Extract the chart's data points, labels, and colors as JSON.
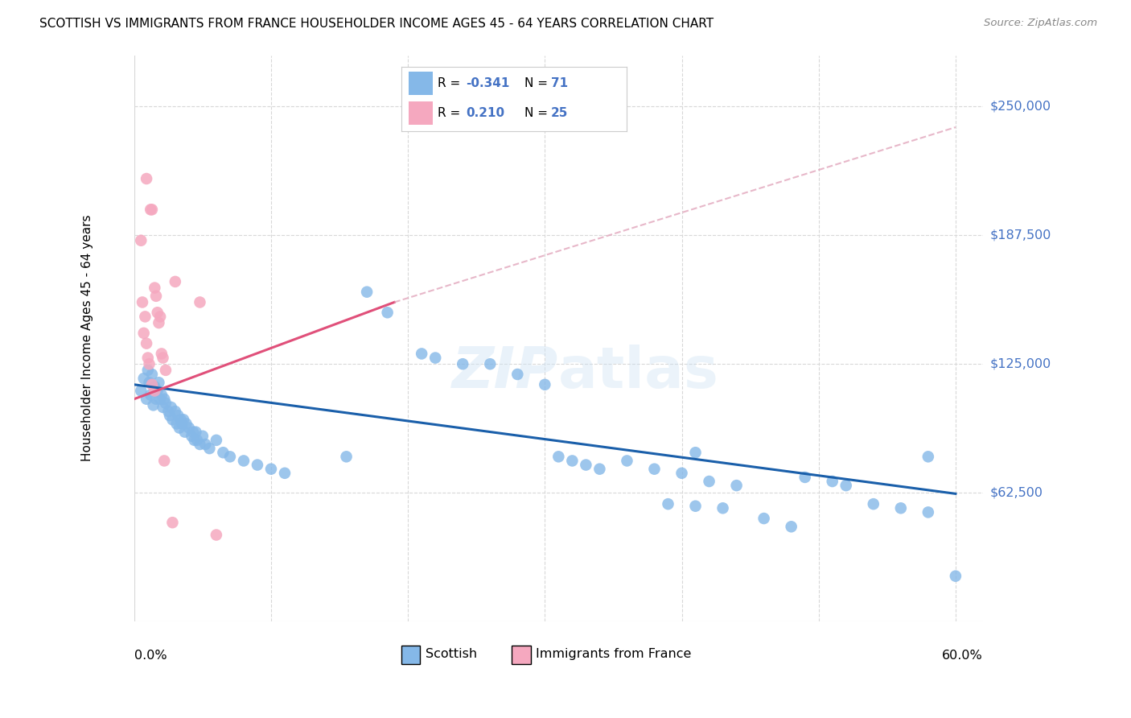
{
  "title": "SCOTTISH VS IMMIGRANTS FROM FRANCE HOUSEHOLDER INCOME AGES 45 - 64 YEARS CORRELATION CHART",
  "source": "Source: ZipAtlas.com",
  "ylabel": "Householder Income Ages 45 - 64 years",
  "ytick_labels": [
    "$62,500",
    "$125,000",
    "$187,500",
    "$250,000"
  ],
  "ytick_values": [
    62500,
    125000,
    187500,
    250000
  ],
  "ylim": [
    0,
    275000
  ],
  "xlim": [
    0.0,
    0.62
  ],
  "blue_color": "#85b8e8",
  "pink_color": "#f5a8bf",
  "blue_line_color": "#1a5faa",
  "pink_line_solid_color": "#e0507a",
  "pink_line_dash_color": "#e0a0b8",
  "grid_color": "#d8d8d8",
  "background_color": "#ffffff",
  "blue_scatter": [
    [
      0.005,
      112000
    ],
    [
      0.007,
      118000
    ],
    [
      0.009,
      108000
    ],
    [
      0.01,
      122000
    ],
    [
      0.011,
      116000
    ],
    [
      0.012,
      110000
    ],
    [
      0.013,
      120000
    ],
    [
      0.014,
      105000
    ],
    [
      0.015,
      114000
    ],
    [
      0.016,
      108000
    ],
    [
      0.017,
      112000
    ],
    [
      0.018,
      116000
    ],
    [
      0.019,
      108000
    ],
    [
      0.02,
      110000
    ],
    [
      0.021,
      104000
    ],
    [
      0.022,
      108000
    ],
    [
      0.023,
      106000
    ],
    [
      0.025,
      102000
    ],
    [
      0.026,
      100000
    ],
    [
      0.027,
      104000
    ],
    [
      0.028,
      98000
    ],
    [
      0.03,
      102000
    ],
    [
      0.031,
      96000
    ],
    [
      0.032,
      100000
    ],
    [
      0.033,
      94000
    ],
    [
      0.034,
      98000
    ],
    [
      0.035,
      96000
    ],
    [
      0.036,
      98000
    ],
    [
      0.037,
      92000
    ],
    [
      0.038,
      96000
    ],
    [
      0.04,
      94000
    ],
    [
      0.042,
      90000
    ],
    [
      0.043,
      92000
    ],
    [
      0.044,
      88000
    ],
    [
      0.045,
      92000
    ],
    [
      0.046,
      88000
    ],
    [
      0.048,
      86000
    ],
    [
      0.05,
      90000
    ],
    [
      0.052,
      86000
    ],
    [
      0.055,
      84000
    ],
    [
      0.06,
      88000
    ],
    [
      0.065,
      82000
    ],
    [
      0.07,
      80000
    ],
    [
      0.08,
      78000
    ],
    [
      0.09,
      76000
    ],
    [
      0.1,
      74000
    ],
    [
      0.11,
      72000
    ],
    [
      0.155,
      80000
    ],
    [
      0.17,
      160000
    ],
    [
      0.185,
      150000
    ],
    [
      0.21,
      130000
    ],
    [
      0.22,
      128000
    ],
    [
      0.24,
      125000
    ],
    [
      0.26,
      125000
    ],
    [
      0.28,
      120000
    ],
    [
      0.3,
      115000
    ],
    [
      0.31,
      80000
    ],
    [
      0.32,
      78000
    ],
    [
      0.33,
      76000
    ],
    [
      0.34,
      74000
    ],
    [
      0.36,
      78000
    ],
    [
      0.38,
      74000
    ],
    [
      0.4,
      72000
    ],
    [
      0.41,
      82000
    ],
    [
      0.42,
      68000
    ],
    [
      0.44,
      66000
    ],
    [
      0.49,
      70000
    ],
    [
      0.51,
      68000
    ],
    [
      0.52,
      66000
    ],
    [
      0.58,
      80000
    ],
    [
      0.46,
      50000
    ],
    [
      0.48,
      46000
    ],
    [
      0.39,
      57000
    ],
    [
      0.41,
      56000
    ],
    [
      0.43,
      55000
    ],
    [
      0.54,
      57000
    ],
    [
      0.56,
      55000
    ],
    [
      0.58,
      53000
    ],
    [
      0.6,
      22000
    ]
  ],
  "pink_scatter": [
    [
      0.005,
      185000
    ],
    [
      0.009,
      215000
    ],
    [
      0.012,
      200000
    ],
    [
      0.013,
      200000
    ],
    [
      0.015,
      162000
    ],
    [
      0.016,
      158000
    ],
    [
      0.017,
      150000
    ],
    [
      0.018,
      145000
    ],
    [
      0.019,
      148000
    ],
    [
      0.02,
      130000
    ],
    [
      0.021,
      128000
    ],
    [
      0.023,
      122000
    ],
    [
      0.006,
      155000
    ],
    [
      0.008,
      148000
    ],
    [
      0.007,
      140000
    ],
    [
      0.009,
      135000
    ],
    [
      0.01,
      128000
    ],
    [
      0.011,
      125000
    ],
    [
      0.013,
      115000
    ],
    [
      0.015,
      112000
    ],
    [
      0.03,
      165000
    ],
    [
      0.048,
      155000
    ],
    [
      0.022,
      78000
    ],
    [
      0.028,
      48000
    ],
    [
      0.06,
      42000
    ]
  ],
  "blue_trend": [
    0.0,
    0.6,
    115000,
    62000
  ],
  "pink_solid_trend": [
    0.0,
    0.19,
    108000,
    155000
  ],
  "pink_dashed_trend": [
    0.19,
    0.6,
    155000,
    240000
  ]
}
